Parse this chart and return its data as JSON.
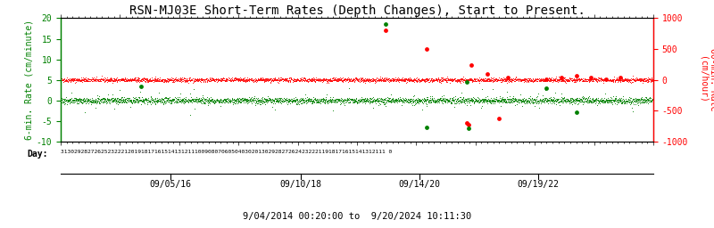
{
  "title": "RSN-MJ03E Short-Term Rates (Depth Changes), Start to Present.",
  "ylabel_left": "6-min. Rate (cm/minute)",
  "ylabel_right": "60-min. Rate (cm/hour)",
  "xlabel_day": "Day:",
  "date_label": "9/04/2014 00:20:00 to  9/20/2024 10:11:30",
  "ylim_left": [
    -10,
    20
  ],
  "ylim_right": [
    -1000,
    1000
  ],
  "left_yticks": [
    -10,
    -5,
    0,
    5,
    10,
    15,
    20
  ],
  "right_yticks": [
    -1000,
    -500,
    0,
    500,
    1000
  ],
  "xtick_labels": [
    "09/05/16",
    "09/10/18",
    "09/14/20",
    "09/19/22"
  ],
  "xtick_positions": [
    0.185,
    0.405,
    0.605,
    0.805
  ],
  "day_tick_str": "3130292827262523222120191817161514131211100908070605040302013029282726242322211918171615141312111 0",
  "background_color": "#ffffff",
  "red_color": "#ff0000",
  "green_color": "#008000",
  "red_baseline": 5.0,
  "green_baseline": 0.0,
  "red_noise_std": 0.25,
  "green_noise_std": 0.35,
  "n_points": 3000,
  "outlier_red_x": [
    0.548,
    0.617,
    0.685,
    0.688,
    0.693,
    0.72,
    0.74,
    0.755,
    0.82,
    0.845,
    0.87,
    0.895,
    0.92,
    0.945
  ],
  "outlier_red_y": [
    17.0,
    12.5,
    -5.5,
    -6.0,
    8.5,
    6.5,
    -4.5,
    5.5,
    5.2,
    5.5,
    6.0,
    5.5,
    5.2,
    5.5
  ],
  "outlier_green_x": [
    0.135,
    0.548,
    0.617,
    0.685,
    0.688,
    0.82,
    0.87
  ],
  "outlier_green_y": [
    3.5,
    18.5,
    -6.5,
    4.5,
    -6.8,
    3.0,
    -3.0
  ],
  "title_fontsize": 10,
  "axis_label_fontsize": 7,
  "tick_fontsize": 7,
  "day_fontsize": 4.5,
  "date_fontsize": 7.5
}
